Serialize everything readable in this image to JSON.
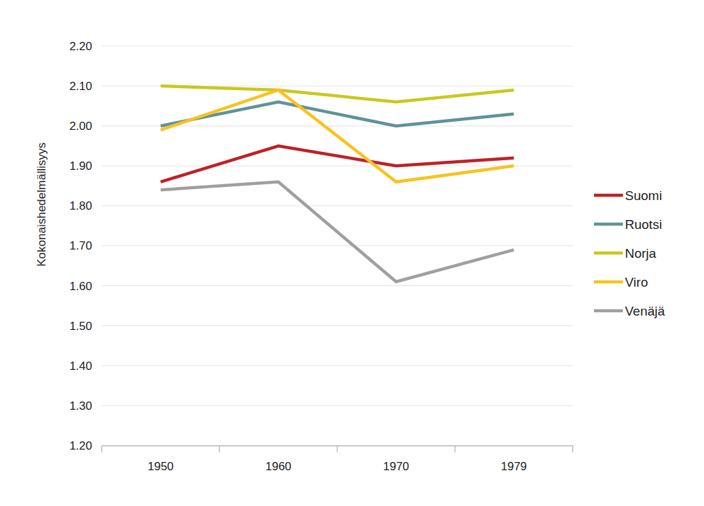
{
  "chart_data": {
    "type": "line",
    "y_label": "Kokonaishedelmällisyys",
    "categories": [
      "1950",
      "1960",
      "1970",
      "1979"
    ],
    "series": [
      {
        "name": "Suomi",
        "color": "#be2126",
        "values": [
          1.86,
          1.95,
          1.9,
          1.92
        ]
      },
      {
        "name": "Ruotsi",
        "color": "#5e9399",
        "values": [
          2.0,
          2.06,
          2.0,
          2.03
        ]
      },
      {
        "name": "Norja",
        "color": "#c9c81f",
        "values": [
          2.1,
          2.09,
          2.06,
          2.09
        ]
      },
      {
        "name": "Viro",
        "color": "#f9c21f",
        "values": [
          1.99,
          2.09,
          1.86,
          1.9
        ]
      },
      {
        "name": "Venäjä",
        "color": "#a29e9e",
        "values": [
          1.84,
          1.86,
          1.61,
          1.69
        ]
      }
    ],
    "ylim": [
      1.2,
      2.2
    ],
    "yticks": [
      {
        "value": 1.2,
        "label": "1.20"
      },
      {
        "value": 1.3,
        "label": "1.30"
      },
      {
        "value": 1.4,
        "label": "1.40"
      },
      {
        "value": 1.5,
        "label": "1.50"
      },
      {
        "value": 1.6,
        "label": "1.60"
      },
      {
        "value": 1.7,
        "label": "1.70"
      },
      {
        "value": 1.8,
        "label": "1.80"
      },
      {
        "value": 1.9,
        "label": "1.90"
      },
      {
        "value": 2.0,
        "label": "2.00"
      },
      {
        "value": 2.1,
        "label": "2.10"
      },
      {
        "value": 2.2,
        "label": "2.20"
      }
    ],
    "grid": true,
    "legend": "right"
  }
}
